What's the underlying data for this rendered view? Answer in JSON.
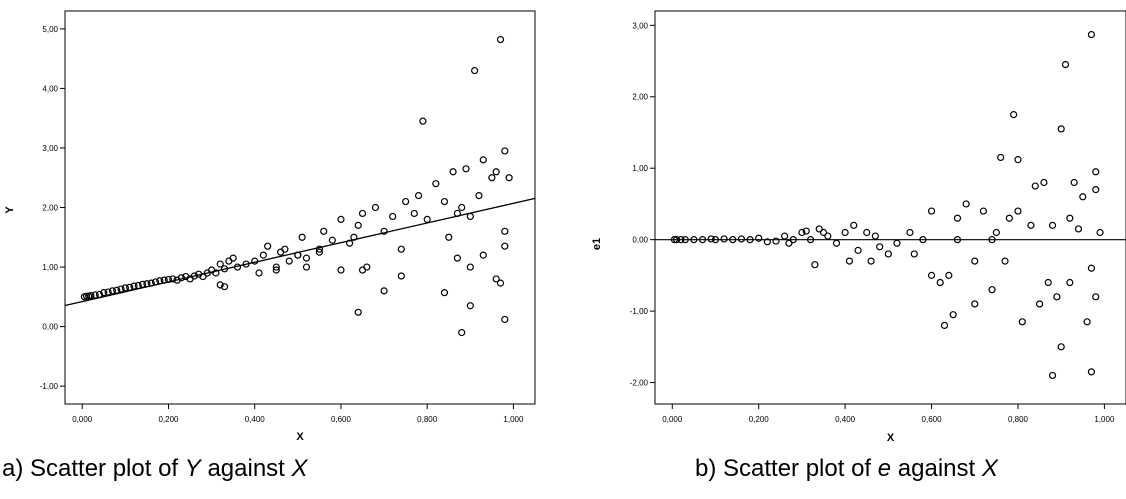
{
  "captions": [
    {
      "prefix": "a) Scatter plot of ",
      "var1": "Y",
      "middle": " against ",
      "var2": "X"
    },
    {
      "prefix": "b) Scatter plot of ",
      "var1": "e",
      "middle": " against ",
      "var2": "X"
    }
  ],
  "chart_data": [
    {
      "type": "scatter",
      "xlabel": "X",
      "ylabel": "Y",
      "xlim": [
        -0.04,
        1.05
      ],
      "ylim": [
        -1.3,
        5.3
      ],
      "xticks": [
        0.0,
        0.2,
        0.4,
        0.6,
        0.8,
        1.0
      ],
      "xtick_labels": [
        "0,000",
        "0,200",
        "0,400",
        "0,600",
        "0,800",
        "1,000"
      ],
      "yticks": [
        -1,
        0,
        1,
        2,
        3,
        4,
        5
      ],
      "ytick_labels": [
        "-1,00",
        "0,00",
        "1,00",
        "2,00",
        "3,00",
        "4,00",
        "5,00"
      ],
      "fit_line": {
        "slope": 1.65,
        "intercept": 0.42
      },
      "points": [
        [
          0.005,
          0.5
        ],
        [
          0.01,
          0.51
        ],
        [
          0.015,
          0.51
        ],
        [
          0.02,
          0.52
        ],
        [
          0.03,
          0.53
        ],
        [
          0.04,
          0.54
        ],
        [
          0.05,
          0.57
        ],
        [
          0.06,
          0.58
        ],
        [
          0.07,
          0.6
        ],
        [
          0.08,
          0.61
        ],
        [
          0.09,
          0.63
        ],
        [
          0.1,
          0.65
        ],
        [
          0.11,
          0.66
        ],
        [
          0.12,
          0.68
        ],
        [
          0.13,
          0.69
        ],
        [
          0.14,
          0.71
        ],
        [
          0.15,
          0.72
        ],
        [
          0.16,
          0.73
        ],
        [
          0.17,
          0.75
        ],
        [
          0.18,
          0.77
        ],
        [
          0.19,
          0.78
        ],
        [
          0.2,
          0.79
        ],
        [
          0.21,
          0.8
        ],
        [
          0.22,
          0.78
        ],
        [
          0.23,
          0.82
        ],
        [
          0.24,
          0.84
        ],
        [
          0.25,
          0.8
        ],
        [
          0.26,
          0.85
        ],
        [
          0.27,
          0.88
        ],
        [
          0.28,
          0.84
        ],
        [
          0.29,
          0.9
        ],
        [
          0.3,
          0.95
        ],
        [
          0.31,
          0.9
        ],
        [
          0.32,
          1.05
        ],
        [
          0.33,
          0.97
        ],
        [
          0.34,
          1.1
        ],
        [
          0.35,
          1.15
        ],
        [
          0.36,
          1.0
        ],
        [
          0.38,
          1.05
        ],
        [
          0.4,
          1.1
        ],
        [
          0.42,
          1.2
        ],
        [
          0.43,
          1.35
        ],
        [
          0.45,
          1.0
        ],
        [
          0.46,
          1.25
        ],
        [
          0.47,
          1.3
        ],
        [
          0.48,
          1.1
        ],
        [
          0.5,
          1.2
        ],
        [
          0.51,
          1.5
        ],
        [
          0.52,
          1.15
        ],
        [
          0.55,
          1.3
        ],
        [
          0.56,
          1.6
        ],
        [
          0.58,
          1.45
        ],
        [
          0.6,
          1.8
        ],
        [
          0.62,
          1.4
        ],
        [
          0.63,
          1.5
        ],
        [
          0.64,
          1.7
        ],
        [
          0.65,
          1.9
        ],
        [
          0.66,
          1.0
        ],
        [
          0.68,
          2.0
        ],
        [
          0.7,
          1.6
        ],
        [
          0.72,
          1.85
        ],
        [
          0.74,
          1.3
        ],
        [
          0.75,
          2.1
        ],
        [
          0.77,
          1.9
        ],
        [
          0.78,
          2.2
        ],
        [
          0.79,
          3.45
        ],
        [
          0.8,
          1.8
        ],
        [
          0.82,
          2.4
        ],
        [
          0.84,
          2.1
        ],
        [
          0.85,
          1.5
        ],
        [
          0.86,
          2.6
        ],
        [
          0.87,
          1.9
        ],
        [
          0.88,
          2.0
        ],
        [
          0.89,
          2.65
        ],
        [
          0.9,
          1.85
        ],
        [
          0.91,
          4.3
        ],
        [
          0.92,
          2.2
        ],
        [
          0.93,
          2.8
        ],
        [
          0.95,
          2.5
        ],
        [
          0.96,
          2.6
        ],
        [
          0.97,
          4.82
        ],
        [
          0.98,
          2.95
        ],
        [
          0.99,
          2.5
        ],
        [
          0.32,
          0.7
        ],
        [
          0.33,
          0.67
        ],
        [
          0.64,
          0.24
        ],
        [
          0.65,
          0.95
        ],
        [
          0.74,
          0.85
        ],
        [
          0.84,
          0.57
        ],
        [
          0.87,
          1.15
        ],
        [
          0.88,
          -0.1
        ],
        [
          0.9,
          1.0
        ],
        [
          0.9,
          0.35
        ],
        [
          0.93,
          1.2
        ],
        [
          0.96,
          0.8
        ],
        [
          0.97,
          0.73
        ],
        [
          0.98,
          0.12
        ],
        [
          0.98,
          1.35
        ],
        [
          0.98,
          1.6
        ],
        [
          0.6,
          0.95
        ],
        [
          0.7,
          0.6
        ],
        [
          0.55,
          1.25
        ],
        [
          0.52,
          1.0
        ],
        [
          0.5,
          1.2
        ],
        [
          0.45,
          0.95
        ],
        [
          0.41,
          0.9
        ]
      ]
    },
    {
      "type": "scatter",
      "xlabel": "X",
      "ylabel": "e1",
      "xlim": [
        -0.04,
        1.05
      ],
      "ylim": [
        -2.3,
        3.2
      ],
      "xticks": [
        0.0,
        0.2,
        0.4,
        0.6,
        0.8,
        1.0
      ],
      "xtick_labels": [
        "0,000",
        "0,200",
        "0,400",
        "0,600",
        "0,800",
        "1,000"
      ],
      "yticks": [
        -2,
        -1,
        0,
        1,
        2,
        3
      ],
      "ytick_labels": [
        "-2,00",
        "-1,00",
        "0,00",
        "1,00",
        "2,00",
        "3,00"
      ],
      "ref_line_y": 0,
      "points": [
        [
          0.005,
          0.0
        ],
        [
          0.01,
          0.0
        ],
        [
          0.02,
          0.0
        ],
        [
          0.03,
          0.0
        ],
        [
          0.05,
          0.0
        ],
        [
          0.07,
          0.0
        ],
        [
          0.09,
          0.01
        ],
        [
          0.1,
          0.0
        ],
        [
          0.12,
          0.01
        ],
        [
          0.14,
          0.0
        ],
        [
          0.16,
          0.01
        ],
        [
          0.18,
          0.0
        ],
        [
          0.2,
          0.02
        ],
        [
          0.22,
          -0.03
        ],
        [
          0.24,
          -0.02
        ],
        [
          0.26,
          0.05
        ],
        [
          0.27,
          -0.05
        ],
        [
          0.28,
          0.0
        ],
        [
          0.3,
          0.1
        ],
        [
          0.31,
          0.12
        ],
        [
          0.32,
          0.0
        ],
        [
          0.33,
          -0.35
        ],
        [
          0.34,
          0.15
        ],
        [
          0.35,
          0.1
        ],
        [
          0.36,
          0.05
        ],
        [
          0.38,
          -0.05
        ],
        [
          0.4,
          0.1
        ],
        [
          0.41,
          -0.3
        ],
        [
          0.42,
          0.2
        ],
        [
          0.43,
          -0.15
        ],
        [
          0.45,
          0.1
        ],
        [
          0.46,
          -0.3
        ],
        [
          0.47,
          0.05
        ],
        [
          0.48,
          -0.1
        ],
        [
          0.5,
          -0.2
        ],
        [
          0.52,
          -0.05
        ],
        [
          0.55,
          0.1
        ],
        [
          0.56,
          -0.2
        ],
        [
          0.58,
          0.0
        ],
        [
          0.6,
          0.4
        ],
        [
          0.6,
          -0.5
        ],
        [
          0.62,
          -0.6
        ],
        [
          0.63,
          -1.2
        ],
        [
          0.64,
          -0.5
        ],
        [
          0.65,
          -1.05
        ],
        [
          0.66,
          0.3
        ],
        [
          0.68,
          0.5
        ],
        [
          0.7,
          -0.3
        ],
        [
          0.72,
          0.4
        ],
        [
          0.74,
          -0.7
        ],
        [
          0.75,
          0.1
        ],
        [
          0.76,
          1.15
        ],
        [
          0.77,
          -0.3
        ],
        [
          0.78,
          0.3
        ],
        [
          0.79,
          1.75
        ],
        [
          0.8,
          1.12
        ],
        [
          0.81,
          -1.15
        ],
        [
          0.83,
          0.2
        ],
        [
          0.84,
          0.75
        ],
        [
          0.85,
          -0.9
        ],
        [
          0.86,
          0.8
        ],
        [
          0.87,
          -0.6
        ],
        [
          0.88,
          -1.9
        ],
        [
          0.89,
          -0.8
        ],
        [
          0.9,
          1.55
        ],
        [
          0.91,
          2.45
        ],
        [
          0.92,
          0.3
        ],
        [
          0.93,
          0.8
        ],
        [
          0.94,
          0.15
        ],
        [
          0.95,
          0.6
        ],
        [
          0.96,
          -1.15
        ],
        [
          0.97,
          2.87
        ],
        [
          0.97,
          -1.85
        ],
        [
          0.98,
          -0.8
        ],
        [
          0.98,
          0.95
        ],
        [
          0.99,
          0.1
        ],
        [
          0.66,
          0.0
        ],
        [
          0.7,
          -0.9
        ],
        [
          0.74,
          0.0
        ],
        [
          0.8,
          0.4
        ],
        [
          0.88,
          0.2
        ],
        [
          0.9,
          -1.5
        ],
        [
          0.92,
          -0.6
        ],
        [
          0.97,
          -0.4
        ],
        [
          0.98,
          0.7
        ]
      ]
    }
  ]
}
